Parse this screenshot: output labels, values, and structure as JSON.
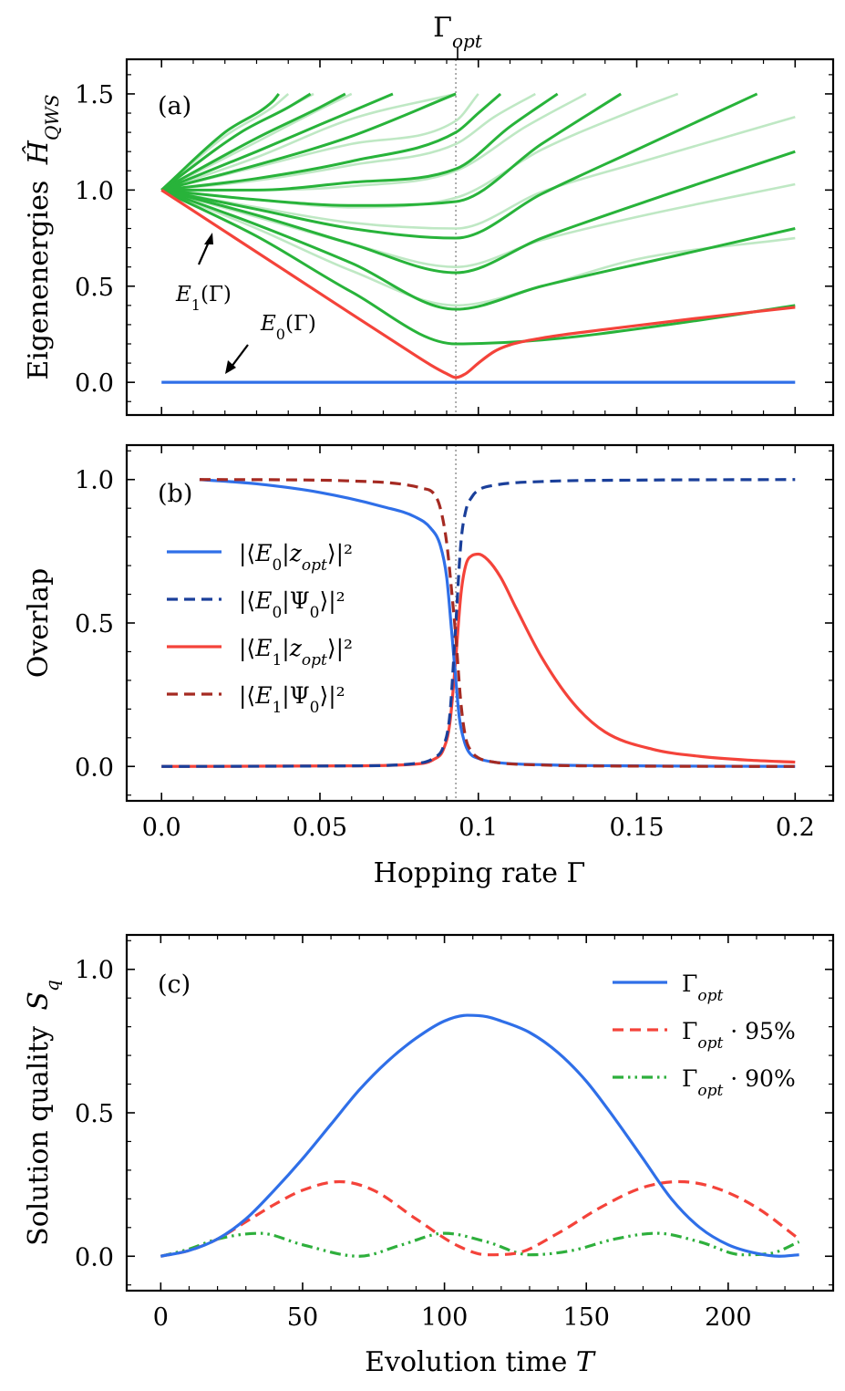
{
  "chart_data": [
    {
      "panel": "(a)",
      "type": "line",
      "top_label": "Γ",
      "top_label_sub": "opt",
      "ylabel": "Eigenenergies",
      "ylabel_symbol": "Ĥ",
      "ylabel_symbol_sub": "QWS",
      "xlim": [
        -0.011,
        0.212
      ],
      "ylim": [
        -0.17,
        1.68
      ],
      "yticks": [
        0.0,
        0.5,
        1.0,
        1.5
      ],
      "ytick_labels": [
        "0.0",
        "0.5",
        "1.0",
        "1.5"
      ],
      "gamma_opt": 0.0929,
      "annotations": [
        {
          "id": "E1",
          "text": "E",
          "sub": "1",
          "suffix": "(Γ)",
          "x": 0.0226,
          "y": 0.455
        },
        {
          "id": "E0",
          "text": "E",
          "sub": "0",
          "suffix": "(Γ)",
          "x": 0.0331,
          "y": 0.28
        }
      ],
      "ground_state": {
        "name": "E0",
        "color": "#2f6fe8",
        "x": [
          0.0,
          0.2
        ],
        "y": [
          0.0,
          0.0
        ]
      },
      "gap_state": {
        "name": "E1",
        "color": "#f4433a",
        "x": [
          0.0,
          0.02,
          0.04,
          0.06,
          0.075,
          0.085,
          0.09,
          0.0929,
          0.096,
          0.1,
          0.105,
          0.11,
          0.12,
          0.14,
          0.17,
          0.2
        ],
        "y": [
          1.0,
          0.785,
          0.57,
          0.355,
          0.195,
          0.09,
          0.045,
          0.025,
          0.045,
          0.1,
          0.16,
          0.195,
          0.23,
          0.275,
          0.335,
          0.39
        ]
      },
      "excited_states": [
        {
          "shade": "dark",
          "x": [
            0.0,
            0.03,
            0.06,
            0.0929,
            0.12,
            0.16,
            0.2
          ],
          "y": [
            1.0,
            0.76,
            0.47,
            0.2,
            0.22,
            0.3,
            0.4
          ]
        },
        {
          "shade": "light",
          "x": [
            0.0,
            0.03,
            0.06,
            0.0929,
            0.12,
            0.15,
            0.2
          ],
          "y": [
            1.0,
            0.8,
            0.58,
            0.4,
            0.5,
            0.64,
            0.75
          ]
        },
        {
          "shade": "dark",
          "x": [
            0.0,
            0.03,
            0.06,
            0.0929,
            0.12,
            0.16,
            0.2
          ],
          "y": [
            1.0,
            0.82,
            0.62,
            0.38,
            0.5,
            0.65,
            0.8
          ]
        },
        {
          "shade": "light",
          "x": [
            0.0,
            0.03,
            0.06,
            0.0929,
            0.12,
            0.15,
            0.2
          ],
          "y": [
            1.0,
            0.86,
            0.72,
            0.6,
            0.74,
            0.86,
            1.03
          ]
        },
        {
          "shade": "dark",
          "x": [
            0.0,
            0.03,
            0.06,
            0.0929,
            0.12,
            0.16,
            0.2
          ],
          "y": [
            1.0,
            0.87,
            0.72,
            0.57,
            0.75,
            0.98,
            1.2
          ]
        },
        {
          "shade": "light",
          "x": [
            0.0,
            0.03,
            0.06,
            0.0929,
            0.12,
            0.15,
            0.2
          ],
          "y": [
            1.0,
            0.91,
            0.83,
            0.8,
            0.99,
            1.14,
            1.38
          ]
        },
        {
          "shade": "dark",
          "x": [
            0.0,
            0.03,
            0.06,
            0.0929,
            0.12,
            0.15,
            0.188
          ],
          "y": [
            1.0,
            0.9,
            0.8,
            0.75,
            0.98,
            1.21,
            1.5
          ]
        },
        {
          "shade": "light",
          "x": [
            0.0,
            0.03,
            0.06,
            0.0929,
            0.12,
            0.15,
            0.163
          ],
          "y": [
            1.0,
            0.95,
            0.91,
            0.96,
            1.21,
            1.42,
            1.5
          ]
        },
        {
          "shade": "dark",
          "x": [
            0.0,
            0.03,
            0.06,
            0.0929,
            0.12,
            0.145
          ],
          "y": [
            1.0,
            0.95,
            0.92,
            0.94,
            1.24,
            1.5
          ]
        },
        {
          "shade": "light",
          "x": [
            0.0,
            0.03,
            0.06,
            0.0929,
            0.115,
            0.134
          ],
          "y": [
            1.0,
            1.0,
            1.02,
            1.1,
            1.33,
            1.5
          ]
        },
        {
          "shade": "dark",
          "x": [
            0.0,
            0.03,
            0.06,
            0.0929,
            0.11,
            0.125
          ],
          "y": [
            1.0,
            1.0,
            1.04,
            1.11,
            1.33,
            1.5
          ]
        },
        {
          "shade": "light",
          "x": [
            0.0,
            0.03,
            0.06,
            0.0929,
            0.105,
            0.118
          ],
          "y": [
            1.0,
            1.05,
            1.13,
            1.24,
            1.38,
            1.5
          ]
        },
        {
          "shade": "dark",
          "x": [
            0.0,
            0.03,
            0.06,
            0.0929,
            0.1,
            0.107
          ],
          "y": [
            1.0,
            1.06,
            1.15,
            1.3,
            1.4,
            1.5
          ]
        },
        {
          "shade": "light",
          "x": [
            0.0,
            0.03,
            0.06,
            0.0929,
            0.1
          ],
          "y": [
            1.0,
            1.12,
            1.24,
            1.36,
            1.5
          ]
        },
        {
          "shade": "dark",
          "x": [
            0.0,
            0.03,
            0.06,
            0.0929
          ],
          "y": [
            1.0,
            1.13,
            1.28,
            1.5
          ]
        },
        {
          "shade": "light",
          "x": [
            0.0,
            0.03,
            0.06,
            0.0929
          ],
          "y": [
            1.0,
            1.17,
            1.37,
            1.5
          ]
        },
        {
          "shade": "dark",
          "x": [
            0.0,
            0.03,
            0.05,
            0.073
          ],
          "y": [
            1.0,
            1.2,
            1.34,
            1.5
          ]
        },
        {
          "shade": "light",
          "x": [
            0.0,
            0.03,
            0.05,
            0.06
          ],
          "y": [
            1.0,
            1.25,
            1.42,
            1.5
          ]
        },
        {
          "shade": "dark",
          "x": [
            0.0,
            0.03,
            0.05,
            0.058
          ],
          "y": [
            1.0,
            1.27,
            1.43,
            1.5
          ]
        },
        {
          "shade": "light",
          "x": [
            0.0,
            0.025,
            0.04,
            0.048
          ],
          "y": [
            1.0,
            1.3,
            1.43,
            1.5
          ]
        },
        {
          "shade": "dark",
          "x": [
            0.0,
            0.025,
            0.04,
            0.047
          ],
          "y": [
            1.0,
            1.3,
            1.43,
            1.5
          ]
        },
        {
          "shade": "light",
          "x": [
            0.0,
            0.02,
            0.035,
            0.04
          ],
          "y": [
            1.0,
            1.28,
            1.43,
            1.5
          ]
        },
        {
          "shade": "dark",
          "x": [
            0.0,
            0.02,
            0.035,
            0.037
          ],
          "y": [
            1.0,
            1.3,
            1.46,
            1.5
          ]
        }
      ],
      "colors": {
        "dark": "#28b33a",
        "light": "#bfe8c4",
        "vline": "#9a9a9a"
      }
    },
    {
      "panel": "(b)",
      "type": "line",
      "ylabel": "Overlap",
      "xlabel": "Hopping rate Γ",
      "xlim": [
        -0.011,
        0.212
      ],
      "ylim": [
        -0.12,
        1.12
      ],
      "xticks": [
        0.0,
        0.05,
        0.1,
        0.15,
        0.2
      ],
      "xtick_labels": [
        "0.0",
        "0.05",
        "0.1",
        "0.15",
        "0.2"
      ],
      "yticks": [
        0.0,
        0.5,
        1.0
      ],
      "ytick_labels": [
        "0.0",
        "0.5",
        "1.0"
      ],
      "series": [
        {
          "name": "|⟨E0|zopt⟩|²",
          "label_a": "|⟨",
          "label_b": "E",
          "label_sub": "0",
          "label_c": "|",
          "label_d": "z",
          "label_dsub": "opt",
          "label_e": "⟩|²",
          "color": "#2f6fe8",
          "dash": "solid",
          "x": [
            0.012,
            0.03,
            0.05,
            0.07,
            0.08,
            0.085,
            0.088,
            0.09,
            0.0915,
            0.0929,
            0.094,
            0.0955,
            0.097,
            0.1,
            0.105,
            0.12,
            0.15,
            0.2
          ],
          "y": [
            1.0,
            0.985,
            0.955,
            0.905,
            0.87,
            0.83,
            0.77,
            0.66,
            0.48,
            0.3,
            0.17,
            0.09,
            0.05,
            0.028,
            0.015,
            0.006,
            0.002,
            0.0
          ]
        },
        {
          "name": "|⟨E0|Ψ0⟩|²",
          "label_a": "|⟨",
          "label_b": "E",
          "label_sub": "0",
          "label_c": "|Ψ",
          "label_d": "",
          "label_dsub": "0",
          "label_e": "⟩|²",
          "color": "#1a3f9a",
          "dash": "dashed",
          "x": [
            0.0,
            0.06,
            0.08,
            0.086,
            0.089,
            0.091,
            0.0929,
            0.0945,
            0.096,
            0.098,
            0.1,
            0.105,
            0.12,
            0.15,
            0.2
          ],
          "y": [
            0.0,
            0.002,
            0.01,
            0.03,
            0.07,
            0.18,
            0.5,
            0.78,
            0.89,
            0.94,
            0.963,
            0.98,
            0.993,
            0.998,
            1.0
          ]
        },
        {
          "name": "|⟨E1|zopt⟩|²",
          "label_a": "|⟨",
          "label_b": "E",
          "label_sub": "1",
          "label_c": "|",
          "label_d": "z",
          "label_dsub": "opt",
          "label_e": "⟩|²",
          "color": "#f4433a",
          "dash": "solid",
          "x": [
            0.0,
            0.06,
            0.08,
            0.086,
            0.089,
            0.091,
            0.0929,
            0.0945,
            0.096,
            0.098,
            0.1,
            0.103,
            0.107,
            0.112,
            0.12,
            0.13,
            0.14,
            0.155,
            0.17,
            0.185,
            0.2
          ],
          "y": [
            0.0,
            0.002,
            0.008,
            0.025,
            0.06,
            0.15,
            0.38,
            0.6,
            0.7,
            0.735,
            0.74,
            0.72,
            0.66,
            0.55,
            0.38,
            0.22,
            0.12,
            0.06,
            0.035,
            0.022,
            0.015
          ]
        },
        {
          "name": "|⟨E1|Ψ0⟩|²",
          "label_a": "|⟨",
          "label_b": "E",
          "label_sub": "1",
          "label_c": "|Ψ",
          "label_d": "",
          "label_dsub": "0",
          "label_e": "⟩|²",
          "color": "#a52a22",
          "dash": "dashed",
          "x": [
            0.012,
            0.04,
            0.06,
            0.075,
            0.082,
            0.086,
            0.088,
            0.09,
            0.0915,
            0.0929,
            0.0945,
            0.096,
            0.098,
            0.1,
            0.105,
            0.12,
            0.15,
            0.2
          ],
          "y": [
            1.0,
            0.999,
            0.995,
            0.985,
            0.97,
            0.95,
            0.9,
            0.78,
            0.62,
            0.45,
            0.22,
            0.1,
            0.05,
            0.03,
            0.015,
            0.005,
            0.001,
            0.0
          ]
        }
      ],
      "vline_x": 0.0929
    },
    {
      "panel": "(c)",
      "type": "line",
      "ylabel": "Solution quality",
      "ylabel_symbol": "S",
      "ylabel_symbol_sub": "q",
      "xlabel": "Evolution time",
      "xlabel_symbol": "T",
      "xlim": [
        -12,
        237
      ],
      "ylim": [
        -0.12,
        1.12
      ],
      "xticks": [
        0,
        50,
        100,
        150,
        200
      ],
      "xtick_labels": [
        "0",
        "50",
        "100",
        "150",
        "200"
      ],
      "yticks": [
        0.0,
        0.5,
        1.0
      ],
      "ytick_labels": [
        "0.0",
        "0.5",
        "1.0"
      ],
      "series": [
        {
          "name": "Γopt",
          "label_a": "Γ",
          "label_sub": "opt",
          "label_b": "",
          "color": "#2f6fe8",
          "dash": "solid",
          "x": [
            0,
            10,
            20,
            30,
            40,
            50,
            60,
            70,
            80,
            90,
            100,
            108,
            115,
            120,
            130,
            140,
            150,
            160,
            170,
            180,
            190,
            200,
            210,
            218,
            225
          ],
          "y": [
            0.0,
            0.02,
            0.06,
            0.13,
            0.23,
            0.34,
            0.46,
            0.58,
            0.68,
            0.76,
            0.82,
            0.84,
            0.835,
            0.82,
            0.78,
            0.71,
            0.61,
            0.48,
            0.34,
            0.2,
            0.1,
            0.04,
            0.01,
            0.0,
            0.005
          ]
        },
        {
          "name": "Γopt·95%",
          "label_a": "Γ",
          "label_sub": "opt",
          "label_b": " · 95%",
          "color": "#f4433a",
          "dash": "dashed",
          "x": [
            0,
            10,
            20,
            30,
            40,
            50,
            63,
            75,
            90,
            105,
            115,
            125,
            140,
            155,
            170,
            183,
            195,
            210,
            225
          ],
          "y": [
            0.0,
            0.02,
            0.06,
            0.12,
            0.18,
            0.23,
            0.26,
            0.23,
            0.13,
            0.035,
            0.005,
            0.01,
            0.08,
            0.17,
            0.24,
            0.26,
            0.24,
            0.17,
            0.06
          ]
        },
        {
          "name": "Γopt·90%",
          "label_a": "Γ",
          "label_sub": "opt",
          "label_b": " · 90%",
          "color": "#2eaf3c",
          "dash": "dashdotdot",
          "x": [
            0,
            10,
            20,
            35,
            50,
            70,
            85,
            100,
            115,
            130,
            145,
            160,
            175,
            190,
            205,
            215,
            225
          ],
          "y": [
            0.0,
            0.025,
            0.06,
            0.08,
            0.04,
            0.0,
            0.04,
            0.08,
            0.05,
            0.005,
            0.02,
            0.06,
            0.08,
            0.05,
            0.005,
            0.01,
            0.05
          ]
        }
      ]
    }
  ]
}
